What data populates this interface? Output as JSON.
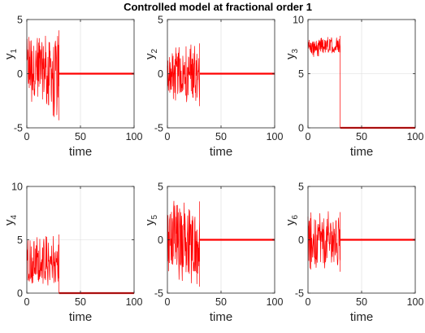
{
  "figure": {
    "title": "Controlled model at fractional order 1",
    "line_color": "#ff0000"
  },
  "chart_data": [
    {
      "type": "line",
      "ylabel_main": "y",
      "ylabel_sub": "1",
      "xlabel": "time",
      "xlim": [
        0,
        100
      ],
      "ylim": [
        -5,
        5
      ],
      "xticks": [
        0,
        50,
        100
      ],
      "yticks": [
        -5,
        0,
        5
      ],
      "grid": true,
      "series": [
        {
          "x": [
            0,
            30
          ],
          "y_min": [
            -2.5,
            -4.3
          ],
          "y_max": [
            3.5,
            4.0
          ],
          "center": 0.5,
          "t_switch": 30
        },
        {
          "x": [
            30,
            100
          ],
          "y": [
            0,
            0
          ]
        }
      ]
    },
    {
      "type": "line",
      "ylabel_main": "y",
      "ylabel_sub": "2",
      "xlabel": "time",
      "xlim": [
        0,
        100
      ],
      "ylim": [
        -5,
        5
      ],
      "xticks": [
        0,
        50,
        100
      ],
      "yticks": [
        -5,
        0,
        5
      ],
      "grid": true,
      "series": [
        {
          "x": [
            0,
            30
          ],
          "y_min": [
            -2.5,
            -3.0
          ],
          "y_max": [
            2.5,
            2.8
          ],
          "center": 0.0,
          "t_switch": 30
        },
        {
          "x": [
            30,
            100
          ],
          "y": [
            0,
            0
          ]
        }
      ]
    },
    {
      "type": "line",
      "ylabel_main": "y",
      "ylabel_sub": "3",
      "xlabel": "time",
      "xlim": [
        0,
        100
      ],
      "ylim": [
        0,
        10
      ],
      "xticks": [
        0,
        50,
        100
      ],
      "yticks": [
        0,
        5,
        10
      ],
      "grid": true,
      "series": [
        {
          "x": [
            0,
            30
          ],
          "y_min": [
            6.5,
            6.8
          ],
          "y_max": [
            8.3,
            8.5
          ],
          "center": 7.4,
          "t_switch": 30
        },
        {
          "x": [
            30,
            100
          ],
          "y": [
            0,
            0
          ]
        }
      ]
    },
    {
      "type": "line",
      "ylabel_main": "y",
      "ylabel_sub": "4",
      "xlabel": "time",
      "xlim": [
        0,
        100
      ],
      "ylim": [
        0,
        10
      ],
      "xticks": [
        0,
        50,
        100
      ],
      "yticks": [
        0,
        5,
        10
      ],
      "grid": true,
      "series": [
        {
          "x": [
            0,
            30
          ],
          "y_min": [
            0.5,
            0.8
          ],
          "y_max": [
            5.3,
            5.5
          ],
          "center": 2.8,
          "t_switch": 30
        },
        {
          "x": [
            30,
            100
          ],
          "y": [
            0,
            0
          ]
        }
      ]
    },
    {
      "type": "line",
      "ylabel_main": "y",
      "ylabel_sub": "5",
      "xlabel": "time",
      "xlim": [
        0,
        100
      ],
      "ylim": [
        -5,
        5
      ],
      "xticks": [
        0,
        50,
        100
      ],
      "yticks": [
        -5,
        0,
        5
      ],
      "grid": true,
      "series": [
        {
          "x": [
            0,
            30
          ],
          "y_min": [
            -3.5,
            -4.4
          ],
          "y_max": [
            3.8,
            3.6
          ],
          "center": 0.0,
          "t_switch": 30
        },
        {
          "x": [
            30,
            100
          ],
          "y": [
            0,
            0
          ]
        }
      ]
    },
    {
      "type": "line",
      "ylabel_main": "y",
      "ylabel_sub": "6",
      "xlabel": "time",
      "xlim": [
        0,
        100
      ],
      "ylim": [
        -5,
        5
      ],
      "xticks": [
        0,
        50,
        100
      ],
      "yticks": [
        -5,
        0,
        5
      ],
      "grid": true,
      "series": [
        {
          "x": [
            0,
            30
          ],
          "y_min": [
            -2.8,
            -3.0
          ],
          "y_max": [
            2.8,
            2.6
          ],
          "center": 0.0,
          "t_switch": 30
        },
        {
          "x": [
            30,
            100
          ],
          "y": [
            0,
            0
          ]
        }
      ]
    }
  ]
}
